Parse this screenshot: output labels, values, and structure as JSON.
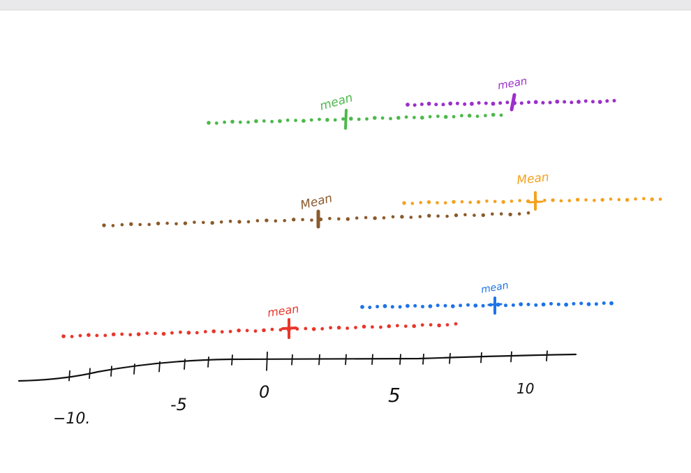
{
  "axis": {
    "tick_labels": [
      {
        "value": -10,
        "text": "−10."
      },
      {
        "value": -5,
        "text": "-5"
      },
      {
        "value": 0,
        "text": "0"
      },
      {
        "value": 5,
        "text": "5"
      },
      {
        "value": 10,
        "text": "10"
      }
    ],
    "color": "#111111"
  },
  "rows": [
    {
      "id": "top",
      "series": [
        {
          "id": "green",
          "color": "#4cb84a",
          "mean_label": "mean"
        },
        {
          "id": "purple",
          "color": "#9b2fc9",
          "mean_label": "mean"
        }
      ]
    },
    {
      "id": "middle",
      "series": [
        {
          "id": "brown",
          "color": "#8a5a2b",
          "mean_label": "Mean"
        },
        {
          "id": "orange",
          "color": "#f4a11e",
          "mean_label": "Mean"
        }
      ]
    },
    {
      "id": "bottom",
      "series": [
        {
          "id": "red",
          "color": "#e8362b",
          "mean_label": "mean"
        },
        {
          "id": "blue",
          "color": "#1e73e8",
          "mean_label": "mean"
        }
      ]
    }
  ]
}
